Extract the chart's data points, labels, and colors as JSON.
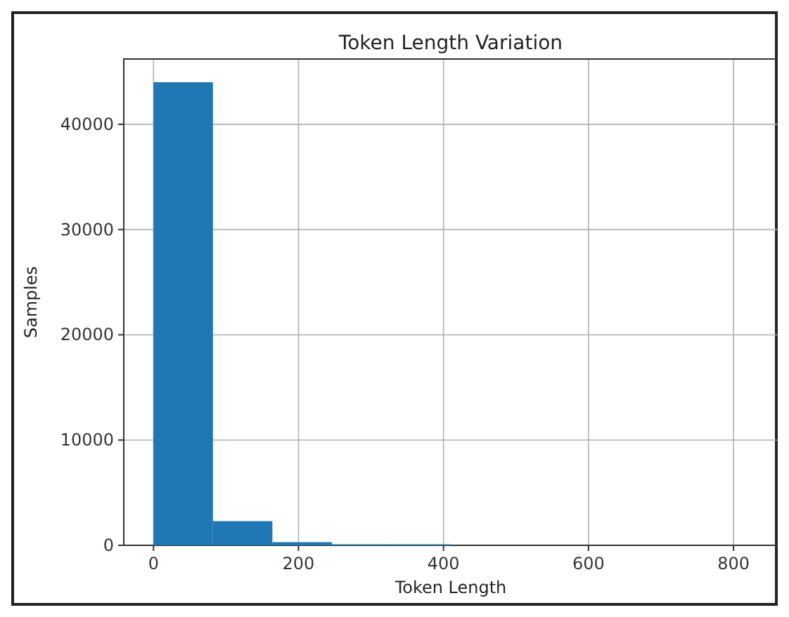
{
  "chart_data": {
    "type": "histogram",
    "title": "Token Length Variation",
    "xlabel": "Token Length",
    "ylabel": "Samples",
    "bins": [
      0,
      82,
      164,
      246,
      328,
      410,
      492,
      574,
      656,
      738,
      820
    ],
    "values": [
      44000,
      2300,
      300,
      100,
      100,
      0,
      0,
      0,
      0,
      0
    ],
    "color": "#1f77b4",
    "xlim": [
      -41,
      861
    ],
    "xticks": [
      0,
      200,
      400,
      600,
      800
    ],
    "ylim": [
      0,
      46200
    ],
    "yticks": [
      0,
      10000,
      20000,
      30000,
      40000
    ],
    "grid": true
  }
}
